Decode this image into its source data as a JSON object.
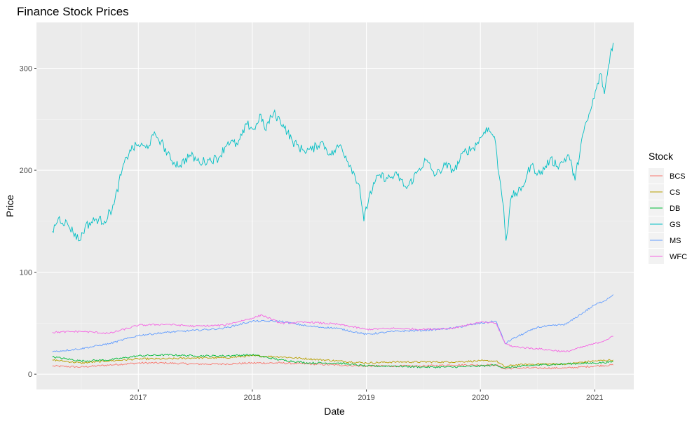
{
  "chart_data": {
    "type": "line",
    "title": "Finance Stock Prices",
    "xlabel": "Date",
    "ylabel": "Price",
    "x_range": [
      "2016-02-10",
      "2021-05-06"
    ],
    "ylim": [
      -15,
      345
    ],
    "x_ticks": [
      {
        "date": "2017-01-01",
        "label": "2017"
      },
      {
        "date": "2018-01-01",
        "label": "2018"
      },
      {
        "date": "2019-01-01",
        "label": "2019"
      },
      {
        "date": "2020-01-01",
        "label": "2020"
      },
      {
        "date": "2021-01-01",
        "label": "2021"
      }
    ],
    "y_ticks": [
      0,
      100,
      200,
      300
    ],
    "grid": true,
    "background": "#ebebeb",
    "legend": {
      "title": "Stock",
      "position": "right"
    },
    "series": [
      {
        "name": "BCS",
        "color": "#F8766D",
        "points": [
          [
            "2016-04-01",
            8
          ],
          [
            "2016-07-01",
            7
          ],
          [
            "2016-10-01",
            9
          ],
          [
            "2017-01-01",
            11
          ],
          [
            "2017-04-01",
            11
          ],
          [
            "2017-07-01",
            10
          ],
          [
            "2017-10-01",
            10
          ],
          [
            "2018-01-01",
            11
          ],
          [
            "2018-04-01",
            11
          ],
          [
            "2018-07-01",
            10
          ],
          [
            "2018-10-01",
            9
          ],
          [
            "2019-01-01",
            8
          ],
          [
            "2019-04-01",
            8
          ],
          [
            "2019-07-01",
            8
          ],
          [
            "2019-10-01",
            9
          ],
          [
            "2020-01-01",
            9
          ],
          [
            "2020-02-20",
            9
          ],
          [
            "2020-03-20",
            5
          ],
          [
            "2020-04-15",
            6
          ],
          [
            "2020-07-01",
            6
          ],
          [
            "2020-10-01",
            6
          ],
          [
            "2021-01-01",
            8
          ],
          [
            "2021-03-01",
            9
          ]
        ]
      },
      {
        "name": "CS",
        "color": "#B79F00",
        "points": [
          [
            "2016-04-01",
            14
          ],
          [
            "2016-07-01",
            11
          ],
          [
            "2016-10-01",
            13
          ],
          [
            "2017-01-01",
            15
          ],
          [
            "2017-04-01",
            15
          ],
          [
            "2017-07-01",
            16
          ],
          [
            "2017-10-01",
            16
          ],
          [
            "2018-01-01",
            18
          ],
          [
            "2018-04-01",
            17
          ],
          [
            "2018-07-01",
            15
          ],
          [
            "2018-10-01",
            13
          ],
          [
            "2019-01-01",
            11
          ],
          [
            "2019-04-01",
            12
          ],
          [
            "2019-07-01",
            12
          ],
          [
            "2019-10-01",
            12
          ],
          [
            "2020-01-01",
            13
          ],
          [
            "2020-02-20",
            13
          ],
          [
            "2020-03-20",
            7
          ],
          [
            "2020-04-15",
            9
          ],
          [
            "2020-07-01",
            10
          ],
          [
            "2020-10-01",
            10
          ],
          [
            "2021-01-01",
            13
          ],
          [
            "2021-03-01",
            14
          ]
        ]
      },
      {
        "name": "DB",
        "color": "#00BA38",
        "points": [
          [
            "2016-04-01",
            17
          ],
          [
            "2016-07-01",
            13
          ],
          [
            "2016-10-01",
            14
          ],
          [
            "2017-01-01",
            18
          ],
          [
            "2017-04-01",
            19
          ],
          [
            "2017-07-01",
            18
          ],
          [
            "2017-10-01",
            18
          ],
          [
            "2018-01-01",
            19
          ],
          [
            "2018-04-01",
            14
          ],
          [
            "2018-07-01",
            11
          ],
          [
            "2018-10-01",
            11
          ],
          [
            "2019-01-01",
            8
          ],
          [
            "2019-04-01",
            8
          ],
          [
            "2019-07-01",
            7
          ],
          [
            "2019-10-01",
            7
          ],
          [
            "2020-01-01",
            8
          ],
          [
            "2020-02-20",
            9
          ],
          [
            "2020-03-20",
            6
          ],
          [
            "2020-04-15",
            7
          ],
          [
            "2020-07-01",
            9
          ],
          [
            "2020-10-01",
            10
          ],
          [
            "2021-01-01",
            11
          ],
          [
            "2021-03-01",
            12
          ]
        ]
      },
      {
        "name": "GS",
        "color": "#00BFC4",
        "points": [
          [
            "2016-04-01",
            140
          ],
          [
            "2016-04-20",
            153
          ],
          [
            "2016-05-20",
            147
          ],
          [
            "2016-06-27",
            131
          ],
          [
            "2016-07-15",
            145
          ],
          [
            "2016-08-20",
            152
          ],
          [
            "2016-09-15",
            150
          ],
          [
            "2016-10-15",
            166
          ],
          [
            "2016-11-10",
            200
          ],
          [
            "2016-12-05",
            220
          ],
          [
            "2017-01-01",
            225
          ],
          [
            "2017-01-25",
            222
          ],
          [
            "2017-02-25",
            235
          ],
          [
            "2017-03-15",
            228
          ],
          [
            "2017-04-15",
            210
          ],
          [
            "2017-05-15",
            205
          ],
          [
            "2017-06-15",
            215
          ],
          [
            "2017-07-15",
            208
          ],
          [
            "2017-08-15",
            210
          ],
          [
            "2017-09-15",
            212
          ],
          [
            "2017-10-15",
            228
          ],
          [
            "2017-11-15",
            225
          ],
          [
            "2017-12-15",
            245
          ],
          [
            "2018-01-10",
            240
          ],
          [
            "2018-01-25",
            255
          ],
          [
            "2018-02-10",
            240
          ],
          [
            "2018-03-10",
            256
          ],
          [
            "2018-04-10",
            245
          ],
          [
            "2018-05-10",
            228
          ],
          [
            "2018-06-10",
            220
          ],
          [
            "2018-07-10",
            220
          ],
          [
            "2018-08-10",
            228
          ],
          [
            "2018-09-10",
            215
          ],
          [
            "2018-10-10",
            225
          ],
          [
            "2018-11-10",
            205
          ],
          [
            "2018-12-10",
            185
          ],
          [
            "2018-12-24",
            150
          ],
          [
            "2019-01-10",
            175
          ],
          [
            "2019-02-10",
            195
          ],
          [
            "2019-03-10",
            192
          ],
          [
            "2019-04-10",
            195
          ],
          [
            "2019-05-10",
            182
          ],
          [
            "2019-06-10",
            197
          ],
          [
            "2019-07-10",
            210
          ],
          [
            "2019-08-10",
            195
          ],
          [
            "2019-09-10",
            205
          ],
          [
            "2019-10-10",
            200
          ],
          [
            "2019-11-10",
            218
          ],
          [
            "2019-12-10",
            222
          ],
          [
            "2020-01-05",
            233
          ],
          [
            "2020-01-20",
            242
          ],
          [
            "2020-02-15",
            233
          ],
          [
            "2020-03-01",
            195
          ],
          [
            "2020-03-15",
            165
          ],
          [
            "2020-03-23",
            131
          ],
          [
            "2020-04-10",
            175
          ],
          [
            "2020-05-10",
            180
          ],
          [
            "2020-06-10",
            205
          ],
          [
            "2020-07-10",
            196
          ],
          [
            "2020-08-10",
            210
          ],
          [
            "2020-09-10",
            205
          ],
          [
            "2020-10-10",
            215
          ],
          [
            "2020-10-30",
            190
          ],
          [
            "2020-11-20",
            230
          ],
          [
            "2020-12-20",
            260
          ],
          [
            "2021-01-20",
            295
          ],
          [
            "2021-02-01",
            275
          ],
          [
            "2021-02-20",
            315
          ],
          [
            "2021-03-01",
            325
          ]
        ]
      },
      {
        "name": "MS",
        "color": "#619CFF",
        "points": [
          [
            "2016-04-01",
            22
          ],
          [
            "2016-07-01",
            25
          ],
          [
            "2016-10-01",
            30
          ],
          [
            "2017-01-01",
            38
          ],
          [
            "2017-04-01",
            41
          ],
          [
            "2017-07-01",
            43
          ],
          [
            "2017-10-01",
            45
          ],
          [
            "2018-01-01",
            52
          ],
          [
            "2018-04-01",
            52
          ],
          [
            "2018-07-01",
            47
          ],
          [
            "2018-10-01",
            45
          ],
          [
            "2019-01-01",
            39
          ],
          [
            "2019-04-01",
            42
          ],
          [
            "2019-07-01",
            43
          ],
          [
            "2019-10-01",
            45
          ],
          [
            "2020-01-01",
            50
          ],
          [
            "2020-02-20",
            52
          ],
          [
            "2020-03-20",
            30
          ],
          [
            "2020-04-15",
            35
          ],
          [
            "2020-07-01",
            46
          ],
          [
            "2020-10-01",
            49
          ],
          [
            "2021-01-01",
            68
          ],
          [
            "2021-02-01",
            72
          ],
          [
            "2021-03-01",
            78
          ]
        ]
      },
      {
        "name": "WFC",
        "color": "#F564E3",
        "points": [
          [
            "2016-04-01",
            41
          ],
          [
            "2016-07-01",
            42
          ],
          [
            "2016-10-01",
            40
          ],
          [
            "2017-01-01",
            48
          ],
          [
            "2017-04-01",
            49
          ],
          [
            "2017-07-01",
            47
          ],
          [
            "2017-10-01",
            48
          ],
          [
            "2018-01-01",
            55
          ],
          [
            "2018-02-01",
            58
          ],
          [
            "2018-04-01",
            50
          ],
          [
            "2018-07-01",
            51
          ],
          [
            "2018-10-01",
            49
          ],
          [
            "2019-01-01",
            44
          ],
          [
            "2019-04-01",
            45
          ],
          [
            "2019-07-01",
            44
          ],
          [
            "2019-10-01",
            45
          ],
          [
            "2020-01-01",
            51
          ],
          [
            "2020-02-20",
            50
          ],
          [
            "2020-03-20",
            30
          ],
          [
            "2020-04-15",
            27
          ],
          [
            "2020-07-01",
            25
          ],
          [
            "2020-10-01",
            22
          ],
          [
            "2021-01-01",
            30
          ],
          [
            "2021-02-01",
            33
          ],
          [
            "2021-03-01",
            37
          ]
        ]
      }
    ]
  }
}
